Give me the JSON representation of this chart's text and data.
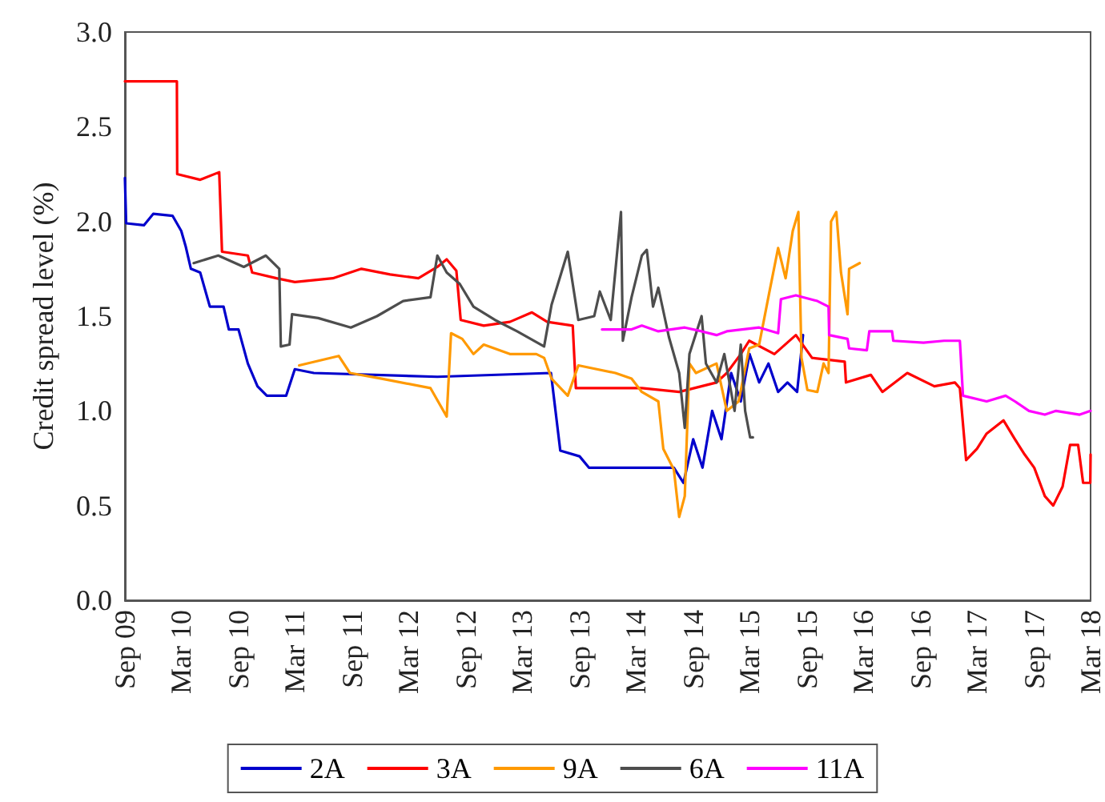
{
  "chart_data": {
    "type": "line",
    "ylabel": "Credit spread level (%)",
    "xlim": [
      "2009-09",
      "2018-03"
    ],
    "xticks": [
      {
        "value": "2009-09",
        "label": "Sep 09"
      },
      {
        "value": "2010-03",
        "label": "Mar 10"
      },
      {
        "value": "2010-09",
        "label": "Sep 10"
      },
      {
        "value": "2011-03",
        "label": "Mar 11"
      },
      {
        "value": "2011-09",
        "label": "Sep 11"
      },
      {
        "value": "2012-03",
        "label": "Mar 12"
      },
      {
        "value": "2012-09",
        "label": "Sep 12"
      },
      {
        "value": "2013-03",
        "label": "Mar 13"
      },
      {
        "value": "2013-09",
        "label": "Sep 13"
      },
      {
        "value": "2014-03",
        "label": "Mar 14"
      },
      {
        "value": "2014-09",
        "label": "Sep 14"
      },
      {
        "value": "2015-03",
        "label": "Mar 15"
      },
      {
        "value": "2015-09",
        "label": "Sep 15"
      },
      {
        "value": "2016-03",
        "label": "Mar 16"
      },
      {
        "value": "2016-09",
        "label": "Sep 16"
      },
      {
        "value": "2017-03",
        "label": "Mar 17"
      },
      {
        "value": "2017-09",
        "label": "Sep 17"
      },
      {
        "value": "2018-03",
        "label": "Mar 18"
      }
    ],
    "ylim": [
      0,
      3
    ],
    "yticks": [
      {
        "value": 0,
        "label": "0.0"
      },
      {
        "value": 0.5,
        "label": "0.5"
      },
      {
        "value": 1,
        "label": "1.0"
      },
      {
        "value": 1.5,
        "label": "1.5"
      },
      {
        "value": 2,
        "label": "2.0"
      },
      {
        "value": 2.5,
        "label": "2.5"
      },
      {
        "value": 3,
        "label": "3.0"
      }
    ],
    "grid": false,
    "legend": "bottom",
    "marker": "none",
    "line_style": "solid",
    "series": [
      {
        "name": "2A",
        "color": "#0000cc",
        "x": [
          "2009-09-01",
          "2009-09-05",
          "2009-11-01",
          "2009-12-01",
          "2010-02-01",
          "2010-03-01",
          "2010-03-15",
          "2010-04-01",
          "2010-05-01",
          "2010-06-01",
          "2010-07-15",
          "2010-08-01",
          "2010-09-01",
          "2010-10-01",
          "2010-11-01",
          "2010-12-01",
          "2011-02-01",
          "2011-03-01",
          "2011-05-01",
          "2012-06-01",
          "2013-06-01",
          "2013-07-01",
          "2013-09-01",
          "2013-10-01",
          "2014-07-01",
          "2014-08-01",
          "2014-09-01",
          "2014-10-01",
          "2014-11-01",
          "2014-12-01",
          "2015-01-01",
          "2015-02-01",
          "2015-03-01",
          "2015-04-01",
          "2015-05-01",
          "2015-06-01",
          "2015-07-01",
          "2015-08-01",
          "2015-08-20"
        ],
        "values": [
          2.23,
          1.99,
          1.98,
          2.04,
          2.03,
          1.95,
          1.87,
          1.75,
          1.73,
          1.55,
          1.55,
          1.43,
          1.43,
          1.25,
          1.13,
          1.08,
          1.08,
          1.22,
          1.2,
          1.18,
          1.2,
          0.79,
          0.76,
          0.7,
          0.7,
          0.62,
          0.85,
          0.7,
          1.0,
          0.85,
          1.2,
          1.05,
          1.3,
          1.15,
          1.25,
          1.1,
          1.15,
          1.1,
          1.4
        ]
      },
      {
        "name": "3A",
        "color": "#ff0000",
        "x": [
          "2009-09-01",
          "2010-02-15",
          "2010-02-16",
          "2010-05-01",
          "2010-07-01",
          "2010-07-10",
          "2010-10-01",
          "2010-10-15",
          "2011-01-01",
          "2011-03-01",
          "2011-07-01",
          "2011-10-01",
          "2012-01-01",
          "2012-04-01",
          "2012-06-01",
          "2012-07-01",
          "2012-08-01",
          "2012-08-15",
          "2012-10-28",
          "2013-01-20",
          "2013-04-01",
          "2013-05-20",
          "2013-08-10",
          "2013-08-20",
          "2013-10-01",
          "2014-03-20",
          "2014-07-18",
          "2014-11-15",
          "2014-12-18",
          "2015-02-01",
          "2015-02-28",
          "2015-05-20",
          "2015-07-28",
          "2015-09-18",
          "2016-01-01",
          "2016-01-05",
          "2016-03-25",
          "2016-05-01",
          "2016-07-20",
          "2016-10-15",
          "2016-12-20",
          "2017-01-05",
          "2017-01-25",
          "2017-03-01",
          "2017-04-01",
          "2017-05-25",
          "2017-07-01",
          "2017-08-01",
          "2017-09-01",
          "2017-10-05",
          "2017-11-01",
          "2017-12-01",
          "2017-12-25",
          "2018-01-20",
          "2018-02-05",
          "2018-02-28",
          "2018-03-01"
        ],
        "values": [
          2.74,
          2.74,
          2.25,
          2.22,
          2.26,
          1.84,
          1.82,
          1.73,
          1.7,
          1.68,
          1.7,
          1.75,
          1.72,
          1.7,
          1.76,
          1.8,
          1.74,
          1.48,
          1.45,
          1.47,
          1.52,
          1.47,
          1.45,
          1.12,
          1.12,
          1.12,
          1.1,
          1.15,
          1.2,
          1.3,
          1.37,
          1.3,
          1.4,
          1.28,
          1.26,
          1.15,
          1.19,
          1.1,
          1.2,
          1.13,
          1.15,
          1.12,
          0.74,
          0.8,
          0.88,
          0.95,
          0.85,
          0.77,
          0.7,
          0.55,
          0.5,
          0.6,
          0.82,
          0.82,
          0.62,
          0.62,
          0.77
        ]
      },
      {
        "name": "9A",
        "color": "#ff9900",
        "x": [
          "2011-03-15",
          "2011-07-20",
          "2011-08-25",
          "2011-12-05",
          "2012-05-10",
          "2012-07-01",
          "2012-07-15",
          "2012-08-20",
          "2012-09-25",
          "2012-10-28",
          "2013-01-20",
          "2013-04-15",
          "2013-05-10",
          "2013-06-03",
          "2013-07-25",
          "2013-08-28",
          "2013-12-25",
          "2014-02-15",
          "2014-03-20",
          "2014-05-12",
          "2014-05-28",
          "2014-07-01",
          "2014-07-18",
          "2014-08-05",
          "2014-08-20",
          "2014-09-10",
          "2014-11-15",
          "2014-12-18",
          "2015-01-25",
          "2015-02-28",
          "2015-04-01",
          "2015-05-03",
          "2015-06-01",
          "2015-06-25",
          "2015-07-18",
          "2015-08-05",
          "2015-08-15",
          "2015-09-03",
          "2015-10-05",
          "2015-10-25",
          "2015-11-10",
          "2015-11-18",
          "2015-12-05",
          "2015-12-20",
          "2016-01-10",
          "2016-01-15",
          "2016-02-18"
        ],
        "values": [
          1.24,
          1.29,
          1.2,
          1.17,
          1.12,
          0.97,
          1.41,
          1.38,
          1.3,
          1.35,
          1.3,
          1.3,
          1.28,
          1.17,
          1.08,
          1.24,
          1.2,
          1.17,
          1.1,
          1.05,
          0.8,
          0.69,
          0.44,
          0.55,
          1.25,
          1.2,
          1.25,
          1.0,
          1.05,
          1.33,
          1.35,
          1.62,
          1.86,
          1.7,
          1.95,
          2.05,
          1.28,
          1.11,
          1.1,
          1.25,
          1.2,
          2.0,
          2.05,
          1.73,
          1.51,
          1.75,
          1.78
        ]
      },
      {
        "name": "6A",
        "color": "#4d4d4d",
        "x": [
          "2010-04-10",
          "2010-06-28",
          "2010-09-18",
          "2010-11-28",
          "2011-01-10",
          "2011-01-15",
          "2011-02-12",
          "2011-02-20",
          "2011-05-15",
          "2011-08-28",
          "2011-11-20",
          "2012-02-12",
          "2012-05-10",
          "2012-06-01",
          "2012-07-01",
          "2012-08-12",
          "2012-09-25",
          "2012-12-03",
          "2013-02-12",
          "2013-05-10",
          "2013-06-03",
          "2013-07-25",
          "2013-08-28",
          "2013-10-18",
          "2013-11-05",
          "2013-12-10",
          "2014-01-12",
          "2014-01-18",
          "2014-02-15",
          "2014-03-20",
          "2014-04-05",
          "2014-04-25",
          "2014-05-12",
          "2014-06-15",
          "2014-07-18",
          "2014-08-05",
          "2014-08-20",
          "2014-09-28",
          "2014-10-12",
          "2014-11-15",
          "2014-12-10",
          "2015-01-12",
          "2015-02-01",
          "2015-02-15",
          "2015-03-03",
          "2015-03-12"
        ],
        "values": [
          1.78,
          1.82,
          1.76,
          1.82,
          1.75,
          1.34,
          1.35,
          1.51,
          1.49,
          1.44,
          1.5,
          1.58,
          1.6,
          1.82,
          1.73,
          1.67,
          1.55,
          1.48,
          1.42,
          1.34,
          1.56,
          1.84,
          1.48,
          1.5,
          1.63,
          1.48,
          2.05,
          1.37,
          1.6,
          1.82,
          1.85,
          1.55,
          1.65,
          1.39,
          1.2,
          0.91,
          1.3,
          1.5,
          1.25,
          1.15,
          1.3,
          1.0,
          1.35,
          1.0,
          0.86,
          0.86
        ]
      },
      {
        "name": "11A",
        "color": "#ff00ff",
        "x": [
          "2013-11-12",
          "2014-02-15",
          "2014-03-20",
          "2014-05-12",
          "2014-08-05",
          "2014-09-28",
          "2014-11-15",
          "2014-12-18",
          "2015-04-01",
          "2015-06-01",
          "2015-06-10",
          "2015-07-28",
          "2015-10-05",
          "2015-11-10",
          "2015-11-12",
          "2016-01-10",
          "2016-01-15",
          "2016-03-12",
          "2016-03-20",
          "2016-06-01",
          "2016-06-05",
          "2016-09-10",
          "2016-11-15",
          "2017-01-05",
          "2017-01-15",
          "2017-04-01",
          "2017-06-01",
          "2017-07-01",
          "2017-08-15",
          "2017-10-05",
          "2017-11-10",
          "2018-01-25",
          "2018-03-01"
        ],
        "values": [
          1.43,
          1.43,
          1.45,
          1.42,
          1.44,
          1.42,
          1.4,
          1.42,
          1.44,
          1.41,
          1.59,
          1.61,
          1.58,
          1.55,
          1.4,
          1.38,
          1.33,
          1.32,
          1.42,
          1.42,
          1.37,
          1.36,
          1.37,
          1.37,
          1.08,
          1.05,
          1.08,
          1.05,
          1.0,
          0.98,
          1.0,
          0.98,
          1.0
        ]
      }
    ]
  }
}
